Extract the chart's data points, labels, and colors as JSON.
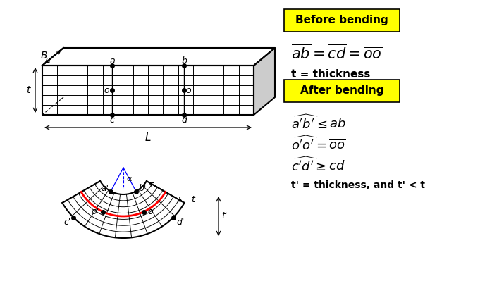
{
  "background_color": "#ffffff",
  "yellow_color": "#ffff00",
  "before_bending_label": "Before bending",
  "after_bending_label": "After bending",
  "t_thickness": "t = thickness",
  "t_prime": "t' = thickness, and t' < t"
}
